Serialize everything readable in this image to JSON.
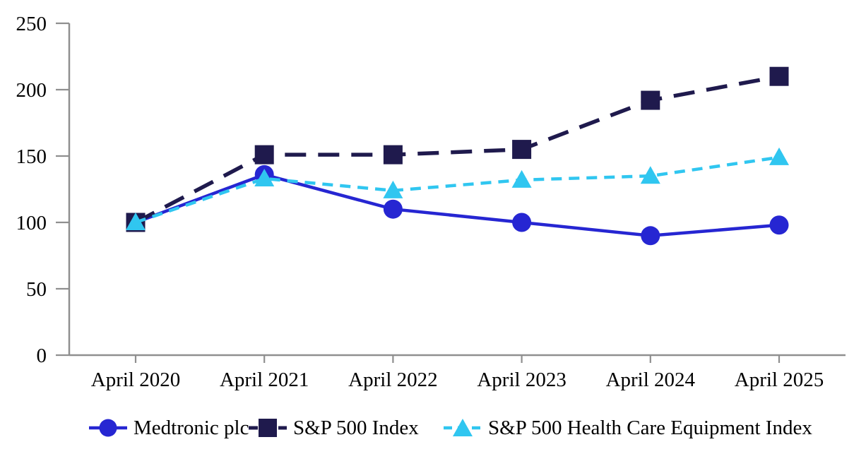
{
  "page": {
    "background_color": "#ffffff",
    "text_color": "#000000",
    "axis_color": "#8f8f8f"
  },
  "chart_data": {
    "type": "line",
    "title": "",
    "xlabel": "",
    "ylabel": "",
    "categories": [
      "April 2020",
      "April 2021",
      "April 2022",
      "April 2023",
      "April 2024",
      "April 2025"
    ],
    "series": [
      {
        "name": "Medtronic plc",
        "values": [
          100,
          136,
          110,
          100,
          90,
          98
        ],
        "color": "#2626D2",
        "marker": "circle",
        "line_style": "solid"
      },
      {
        "name": "S&P 500 Index",
        "values": [
          100,
          151,
          151,
          155,
          192,
          210
        ],
        "color": "#1F1A4D",
        "marker": "square",
        "line_style": "long-dash"
      },
      {
        "name": "S&P 500 Health Care Equipment Index",
        "values": [
          100,
          133,
          124,
          132,
          135,
          149
        ],
        "color": "#30C6F0",
        "marker": "triangle",
        "line_style": "dash"
      }
    ],
    "yticks": [
      0,
      50,
      100,
      150,
      200,
      250
    ],
    "ylim": [
      0,
      250
    ],
    "grid": false,
    "legend_position": "bottom"
  }
}
